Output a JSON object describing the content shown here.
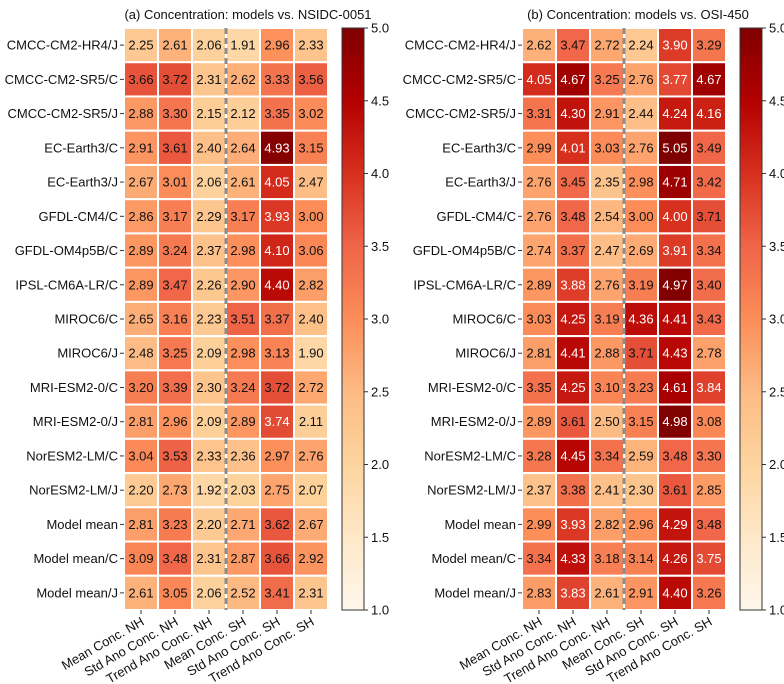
{
  "chart_data": [
    {
      "type": "heatmap",
      "title": "(a) Concentration: models vs. NSIDC-0051",
      "rows": [
        "CMCC-CM2-HR4/J",
        "CMCC-CM2-SR5/C",
        "CMCC-CM2-SR5/J",
        "EC-Earth3/C",
        "EC-Earth3/J",
        "GFDL-CM4/C",
        "GFDL-OM4p5B/C",
        "IPSL-CM6A-LR/C",
        "MIROC6/C",
        "MIROC6/J",
        "MRI-ESM2-0/C",
        "MRI-ESM2-0/J",
        "NorESM2-LM/C",
        "NorESM2-LM/J",
        "Model mean",
        "Model mean/C",
        "Model mean/J"
      ],
      "columns": [
        "Mean Conc. NH",
        "Std Ano Conc. NH",
        "Trend Ano Conc. NH",
        "Mean Conc. SH",
        "Std Ano Conc. SH",
        "Trend Ano Conc. SH"
      ],
      "values": [
        [
          2.25,
          2.61,
          2.06,
          1.91,
          2.96,
          2.33
        ],
        [
          3.66,
          3.72,
          2.31,
          2.62,
          3.33,
          3.56
        ],
        [
          2.88,
          3.3,
          2.15,
          2.12,
          3.35,
          3.02
        ],
        [
          2.91,
          3.61,
          2.4,
          2.64,
          4.93,
          3.15
        ],
        [
          2.67,
          3.01,
          2.06,
          2.61,
          4.05,
          2.47
        ],
        [
          2.86,
          3.17,
          2.29,
          3.17,
          3.93,
          3.0
        ],
        [
          2.89,
          3.24,
          2.37,
          2.98,
          4.1,
          3.06
        ],
        [
          2.89,
          3.47,
          2.26,
          2.9,
          4.4,
          2.82
        ],
        [
          2.65,
          3.16,
          2.23,
          3.51,
          3.37,
          2.4
        ],
        [
          2.48,
          3.25,
          2.09,
          2.98,
          3.13,
          1.9
        ],
        [
          3.2,
          3.39,
          2.3,
          3.24,
          3.72,
          2.72
        ],
        [
          2.81,
          2.96,
          2.09,
          2.89,
          3.74,
          2.11
        ],
        [
          3.04,
          3.53,
          2.33,
          2.36,
          2.97,
          2.76
        ],
        [
          2.2,
          2.73,
          1.92,
          2.03,
          2.75,
          2.07
        ],
        [
          2.81,
          3.23,
          2.2,
          2.71,
          3.62,
          2.67
        ],
        [
          3.09,
          3.48,
          2.31,
          2.87,
          3.66,
          2.92
        ],
        [
          2.61,
          3.05,
          2.06,
          2.52,
          3.41,
          2.31
        ]
      ],
      "colorbar": {
        "min": 1.0,
        "max": 5.0,
        "ticks": [
          "1.0",
          "1.5",
          "2.0",
          "2.5",
          "3.0",
          "3.5",
          "4.0",
          "4.5",
          "5.0"
        ]
      },
      "separator": "dashed grey line between NH and SH columns"
    },
    {
      "type": "heatmap",
      "title": "(b) Concentration: models vs. OSI-450",
      "rows": [
        "CMCC-CM2-HR4/J",
        "CMCC-CM2-SR5/C",
        "CMCC-CM2-SR5/J",
        "EC-Earth3/C",
        "EC-Earth3/J",
        "GFDL-CM4/C",
        "GFDL-OM4p5B/C",
        "IPSL-CM6A-LR/C",
        "MIROC6/C",
        "MIROC6/J",
        "MRI-ESM2-0/C",
        "MRI-ESM2-0/J",
        "NorESM2-LM/C",
        "NorESM2-LM/J",
        "Model mean",
        "Model mean/C",
        "Model mean/J"
      ],
      "columns": [
        "Mean Conc. NH",
        "Std Ano Conc. NH",
        "Trend Ano Conc. NH",
        "Mean Conc. SH",
        "Std Ano Conc. SH",
        "Trend Ano Conc. SH"
      ],
      "values": [
        [
          2.62,
          3.47,
          2.72,
          2.24,
          3.9,
          3.29
        ],
        [
          4.05,
          4.67,
          3.25,
          2.76,
          3.77,
          4.67
        ],
        [
          3.31,
          4.3,
          2.91,
          2.44,
          4.24,
          4.16
        ],
        [
          2.99,
          4.01,
          3.03,
          2.76,
          5.05,
          3.49
        ],
        [
          2.76,
          3.45,
          2.35,
          2.98,
          4.71,
          3.42
        ],
        [
          2.76,
          3.48,
          2.54,
          3.0,
          4.0,
          3.71
        ],
        [
          2.74,
          3.37,
          2.47,
          2.69,
          3.91,
          3.34
        ],
        [
          2.89,
          3.88,
          2.76,
          3.19,
          4.97,
          3.4
        ],
        [
          3.03,
          4.25,
          3.19,
          4.36,
          4.41,
          3.43
        ],
        [
          2.81,
          4.41,
          2.88,
          3.71,
          4.43,
          2.78
        ],
        [
          3.35,
          4.25,
          3.1,
          3.23,
          4.61,
          3.84
        ],
        [
          2.89,
          3.61,
          2.5,
          3.15,
          4.98,
          3.08
        ],
        [
          3.28,
          4.45,
          3.34,
          2.59,
          3.48,
          3.3
        ],
        [
          2.37,
          3.38,
          2.41,
          2.3,
          3.61,
          2.85
        ],
        [
          2.99,
          3.93,
          2.82,
          2.96,
          4.29,
          3.48
        ],
        [
          3.34,
          4.33,
          3.18,
          3.14,
          4.26,
          3.75
        ],
        [
          2.83,
          3.83,
          2.61,
          2.91,
          4.4,
          3.26
        ]
      ],
      "colorbar": {
        "min": 1.0,
        "max": 5.0,
        "ticks": [
          "1.0",
          "1.5",
          "2.0",
          "2.5",
          "3.0",
          "3.5",
          "4.0",
          "4.5",
          "5.0"
        ]
      },
      "separator": "dashed grey line between NH and SH columns"
    }
  ],
  "colors": {
    "colormap": "OrRd",
    "stops": [
      "#fff7ec",
      "#fee8c8",
      "#fdd49e",
      "#fdbb84",
      "#fc8d59",
      "#ef6548",
      "#d7301f",
      "#b30000",
      "#7f0000"
    ],
    "cell_border": "#ffffff",
    "separator": "#8c8c8c",
    "text_dark": "#111111",
    "text_light": "#ffffff"
  }
}
